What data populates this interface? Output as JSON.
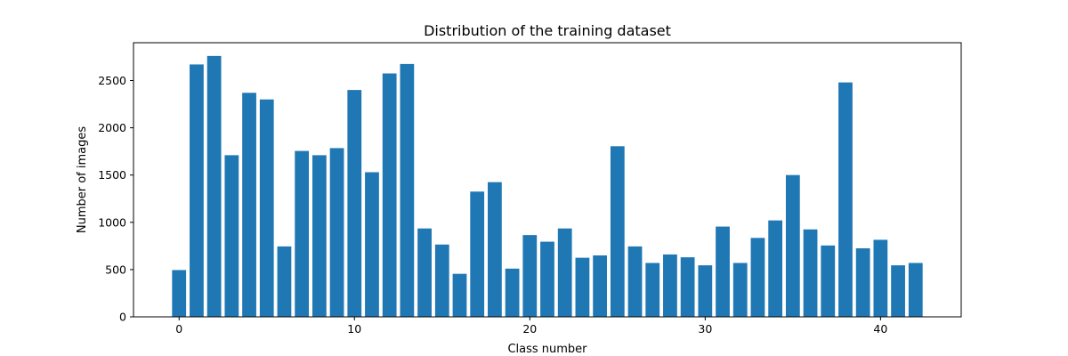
{
  "chart_data": {
    "type": "bar",
    "title": "Distribution of the training dataset",
    "xlabel": "Class number",
    "ylabel": "Number of images",
    "x": [
      0,
      1,
      2,
      3,
      4,
      5,
      6,
      7,
      8,
      9,
      10,
      11,
      12,
      13,
      14,
      15,
      16,
      17,
      18,
      19,
      20,
      21,
      22,
      23,
      24,
      25,
      26,
      27,
      28,
      29,
      30,
      31,
      32,
      33,
      34,
      35,
      36,
      37,
      38,
      39,
      40,
      41,
      42
    ],
    "values": [
      495,
      2670,
      2760,
      1710,
      2370,
      2300,
      745,
      1755,
      1710,
      1785,
      2400,
      1530,
      2575,
      2675,
      935,
      765,
      455,
      1325,
      1425,
      510,
      865,
      795,
      935,
      625,
      650,
      1805,
      745,
      570,
      660,
      630,
      545,
      955,
      570,
      835,
      1020,
      1500,
      925,
      755,
      2480,
      725,
      815,
      545,
      570
    ],
    "xlim": [
      -2.6,
      44.6
    ],
    "ylim": [
      0,
      2900
    ],
    "xticks": [
      0,
      10,
      20,
      30,
      40
    ],
    "yticks": [
      0,
      500,
      1000,
      1500,
      2000,
      2500
    ],
    "bar_color": "#1f77b4",
    "grid": false,
    "legend": "none"
  }
}
